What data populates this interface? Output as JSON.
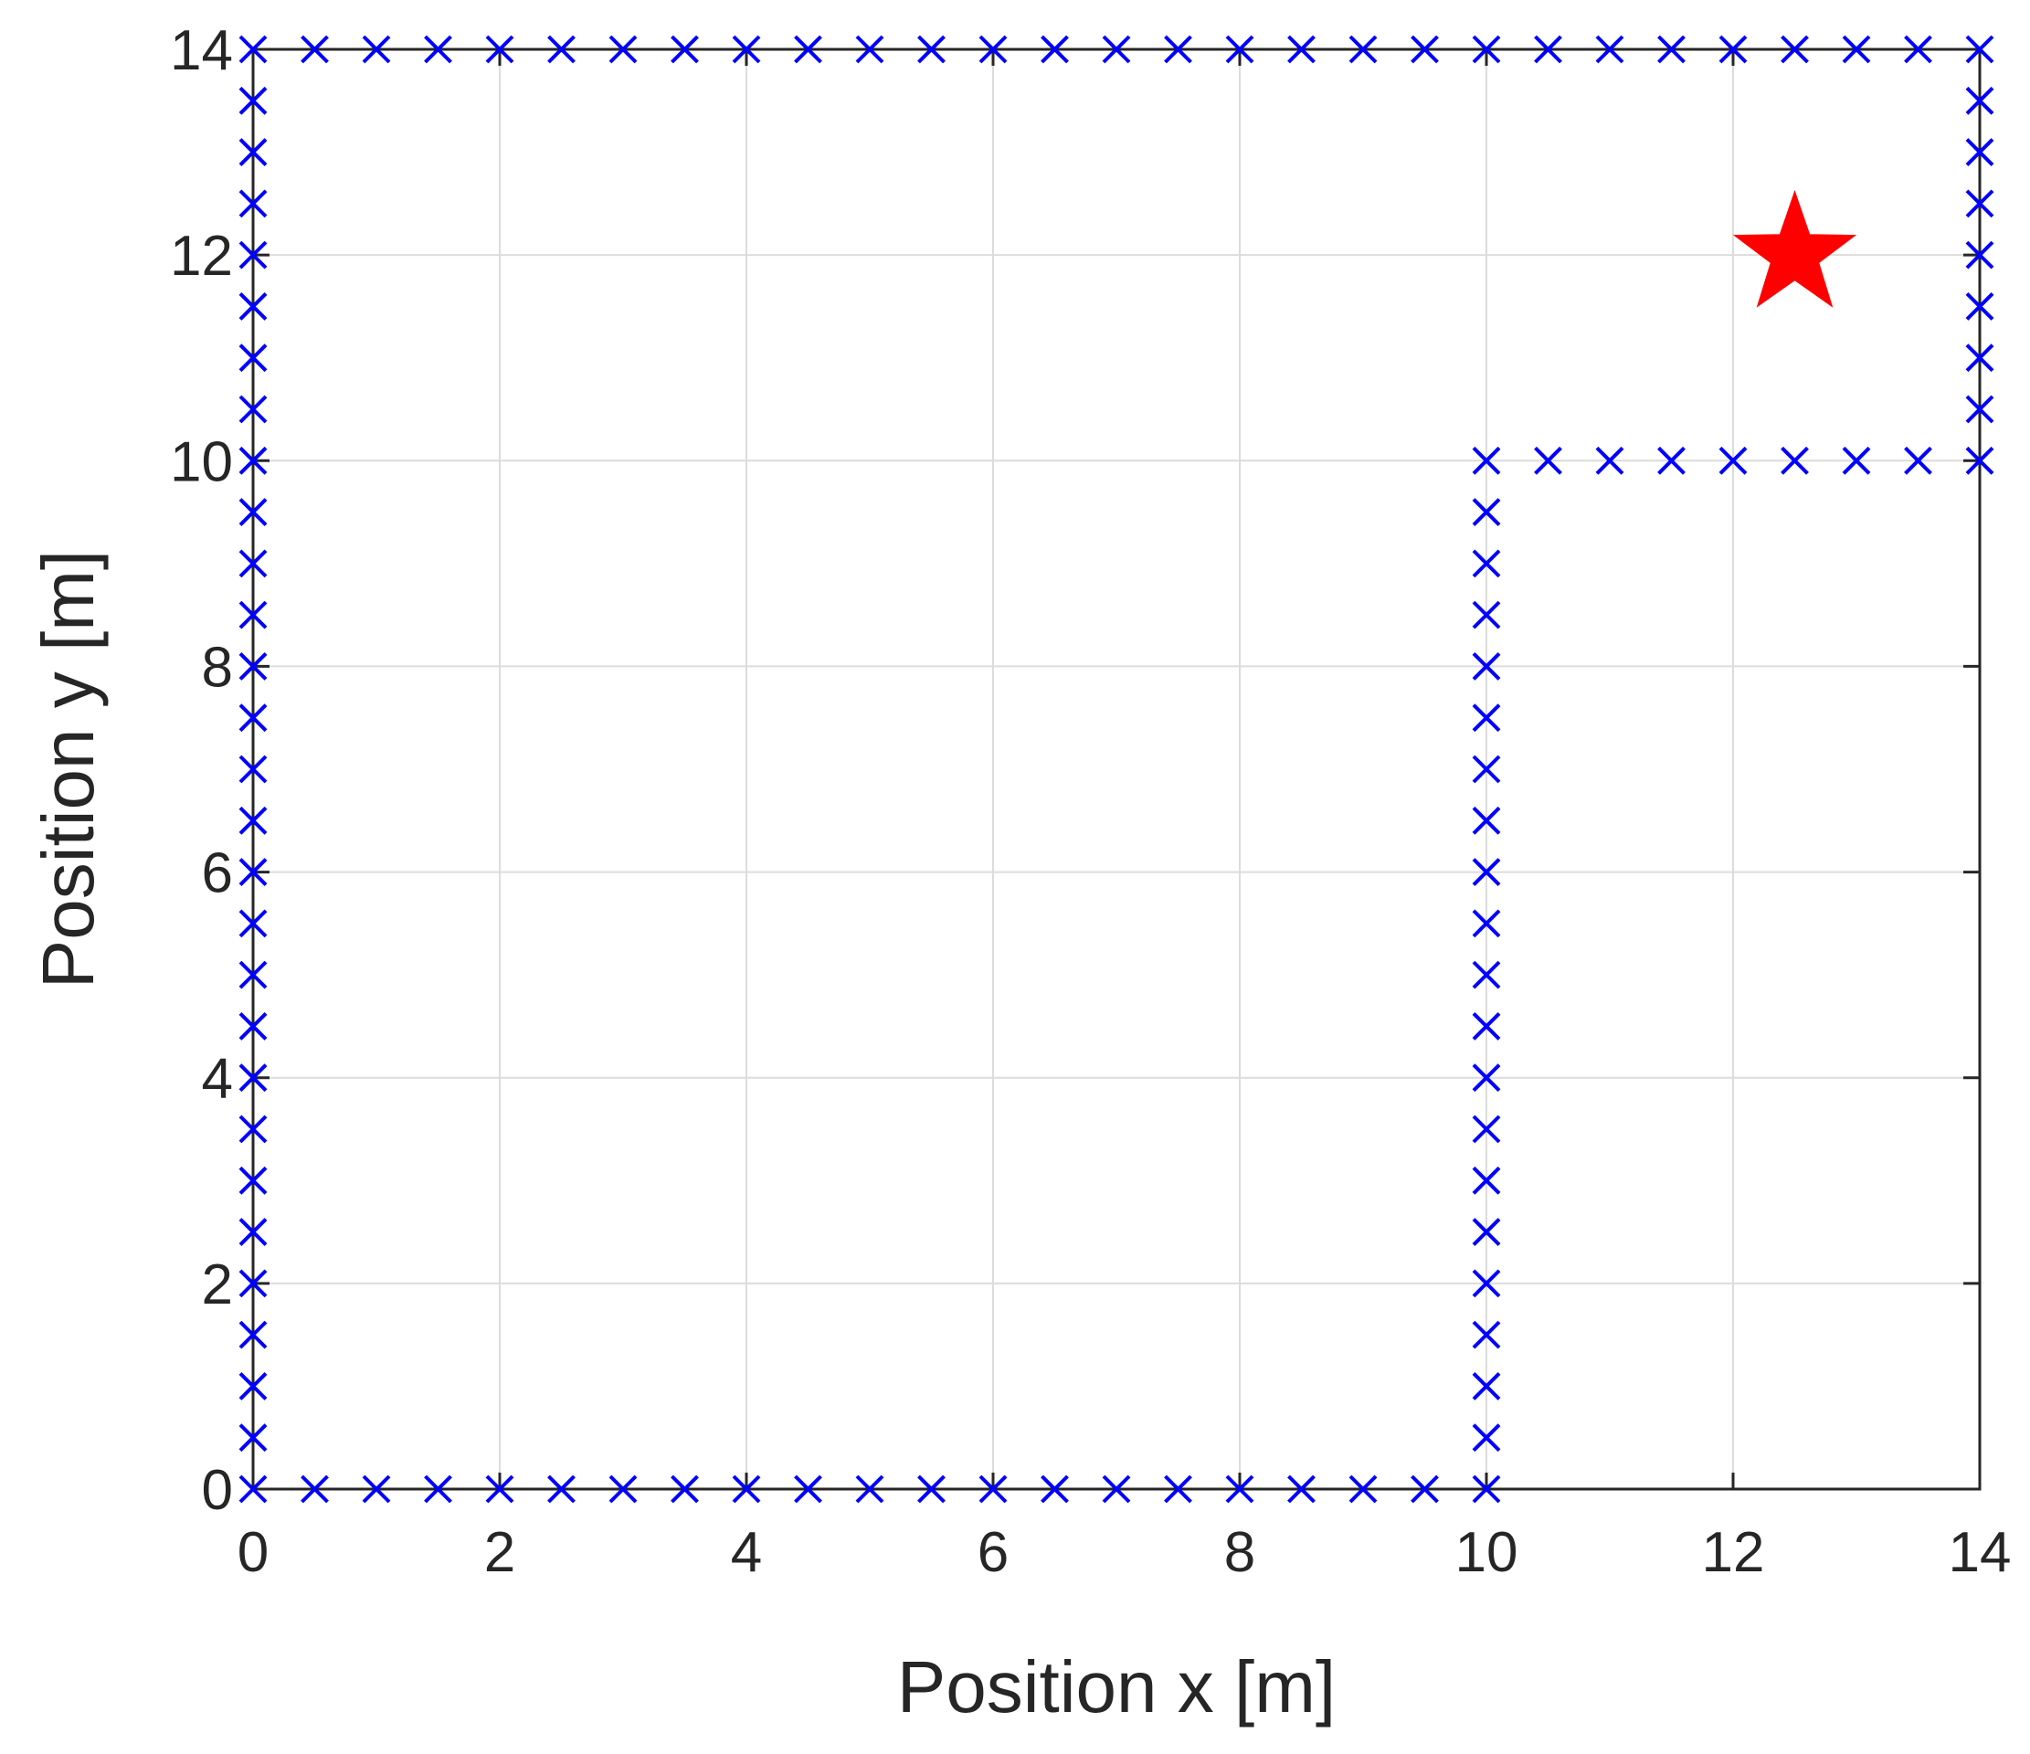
{
  "chart_data": {
    "type": "scatter",
    "title": "",
    "xlabel": "Position x [m]",
    "ylabel": "Position y [m]",
    "xlim": [
      0,
      14
    ],
    "ylim": [
      0,
      14
    ],
    "xticks": [
      0,
      2,
      4,
      6,
      8,
      10,
      12,
      14
    ],
    "yticks": [
      0,
      2,
      4,
      6,
      8,
      10,
      12,
      14
    ],
    "grid": true,
    "box": true,
    "series": [
      {
        "marker": "x",
        "color": "#0000ff",
        "segments": [
          {
            "from": [
              0,
              0
            ],
            "to": [
              10,
              0
            ],
            "step": 0.5
          },
          {
            "from": [
              0,
              0
            ],
            "to": [
              0,
              14
            ],
            "step": 0.5
          },
          {
            "from": [
              0,
              14
            ],
            "to": [
              14,
              14
            ],
            "step": 0.5
          },
          {
            "from": [
              14,
              10
            ],
            "to": [
              14,
              14
            ],
            "step": 0.5
          },
          {
            "from": [
              10,
              10
            ],
            "to": [
              14,
              10
            ],
            "step": 0.5
          },
          {
            "from": [
              10,
              0
            ],
            "to": [
              10,
              10
            ],
            "step": 0.5
          }
        ]
      },
      {
        "marker": "star",
        "color": "#ff0000",
        "points": [
          [
            12.5,
            12
          ]
        ]
      }
    ]
  }
}
